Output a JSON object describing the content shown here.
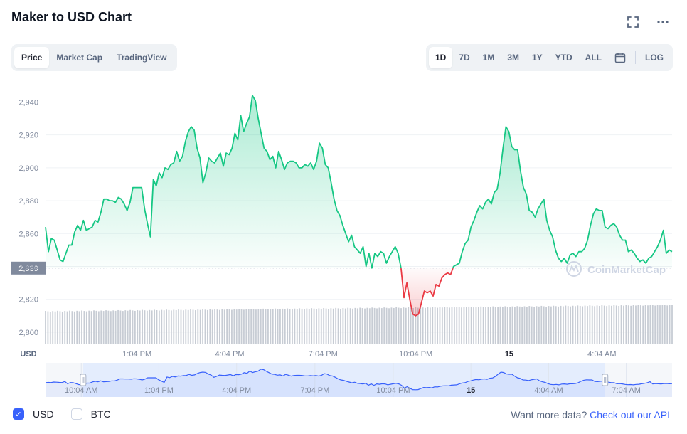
{
  "title": "Maker to USD Chart",
  "icons": {
    "fullscreen": "fullscreen-icon",
    "more": "more-icon"
  },
  "tabs_left": [
    "Price",
    "Market Cap",
    "TradingView"
  ],
  "tabs_left_active": 0,
  "tabs_right": [
    "1D",
    "7D",
    "1M",
    "3M",
    "1Y",
    "YTD",
    "ALL"
  ],
  "tabs_right_active": 0,
  "log_label": "LOG",
  "colors": {
    "up": "#16c784",
    "down": "#ea3943",
    "nav": "#3861fb",
    "volume": "#c7ccd4"
  },
  "chart_data": {
    "type": "line",
    "ylabel": "USD",
    "y_ticks": [
      2800,
      2820,
      2840,
      2860,
      2880,
      2900,
      2920,
      2940
    ],
    "y_tick_labels": [
      "2,800",
      "2,820",
      "2,840",
      "2,860",
      "2,880",
      "2,900",
      "2,920",
      "2,940"
    ],
    "ylim": [
      2790,
      2948
    ],
    "reference_value": 2839,
    "reference_label": "2,839",
    "x_ticks": [
      {
        "label": "1:04 PM",
        "pos": 0.146,
        "bold": false
      },
      {
        "label": "4:04 PM",
        "pos": 0.294,
        "bold": false
      },
      {
        "label": "7:04 PM",
        "pos": 0.443,
        "bold": false
      },
      {
        "label": "10:04 PM",
        "pos": 0.591,
        "bold": false
      },
      {
        "label": "15",
        "pos": 0.74,
        "bold": true
      },
      {
        "label": "4:04 AM",
        "pos": 0.888,
        "bold": false
      }
    ],
    "series": [
      {
        "values": [
          2864,
          2849,
          2857,
          2856,
          2850,
          2844,
          2843,
          2848,
          2853,
          2853,
          2861,
          2865,
          2862,
          2868,
          2862,
          2863,
          2864,
          2868,
          2867,
          2873,
          2881,
          2881,
          2880,
          2880,
          2879,
          2882,
          2881,
          2878,
          2874,
          2879,
          2888,
          2888,
          2888,
          2888,
          2875,
          2866,
          2858,
          2893,
          2889,
          2897,
          2894,
          2900,
          2899,
          2902,
          2903,
          2910,
          2904,
          2907,
          2916,
          2922,
          2925,
          2923,
          2912,
          2906,
          2891,
          2897,
          2906,
          2904,
          2903,
          2906,
          2909,
          2901,
          2909,
          2908,
          2912,
          2921,
          2917,
          2932,
          2922,
          2927,
          2931,
          2944,
          2941,
          2930,
          2921,
          2912,
          2910,
          2905,
          2907,
          2900,
          2910,
          2905,
          2899,
          2903,
          2904,
          2904,
          2903,
          2900,
          2900,
          2902,
          2901,
          2903,
          2899,
          2904,
          2915,
          2912,
          2902,
          2900,
          2891,
          2881,
          2874,
          2871,
          2865,
          2860,
          2855,
          2859,
          2852,
          2850,
          2848,
          2852,
          2840,
          2848,
          2839,
          2848,
          2846,
          2849,
          2848,
          2842,
          2846,
          2849,
          2852,
          2848,
          2839,
          2821,
          2830,
          2820,
          2811,
          2810,
          2811,
          2818,
          2825,
          2824,
          2825,
          2822,
          2829,
          2828,
          2833,
          2835,
          2836,
          2835,
          2840,
          2841,
          2842,
          2849,
          2854,
          2856,
          2864,
          2868,
          2873,
          2877,
          2875,
          2879,
          2881,
          2878,
          2885,
          2887,
          2897,
          2912,
          2925,
          2922,
          2913,
          2911,
          2911,
          2898,
          2888,
          2884,
          2874,
          2873,
          2870,
          2875,
          2878,
          2881,
          2868,
          2862,
          2858,
          2850,
          2845,
          2843,
          2845,
          2842,
          2847,
          2848,
          2846,
          2849,
          2849,
          2851,
          2856,
          2865,
          2872,
          2875,
          2874,
          2874,
          2864,
          2863,
          2865,
          2866,
          2864,
          2859,
          2856,
          2856,
          2849,
          2850,
          2848,
          2845,
          2843,
          2844,
          2842,
          2845,
          2846,
          2849,
          2852,
          2856,
          2862,
          2848,
          2850,
          2849
        ]
      }
    ],
    "navigator_ticks": [
      {
        "label": "10:04 AM",
        "pos": 0.057,
        "bold": false
      },
      {
        "label": "1:04 PM",
        "pos": 0.181,
        "bold": false
      },
      {
        "label": "4:04 PM",
        "pos": 0.305,
        "bold": false
      },
      {
        "label": "7:04 PM",
        "pos": 0.43,
        "bold": false
      },
      {
        "label": "10:04 PM",
        "pos": 0.555,
        "bold": false
      },
      {
        "label": "15",
        "pos": 0.679,
        "bold": true
      },
      {
        "label": "4:04 AM",
        "pos": 0.803,
        "bold": false
      },
      {
        "label": "7:04 AM",
        "pos": 0.927,
        "bold": false
      }
    ],
    "navigator_window": [
      0.06,
      0.893
    ],
    "watermark": "CoinMarketCap"
  },
  "legend": [
    {
      "label": "USD",
      "checked": true
    },
    {
      "label": "BTC",
      "checked": false
    }
  ],
  "api_prefix": "Want more data?",
  "api_link": "Check out our API"
}
